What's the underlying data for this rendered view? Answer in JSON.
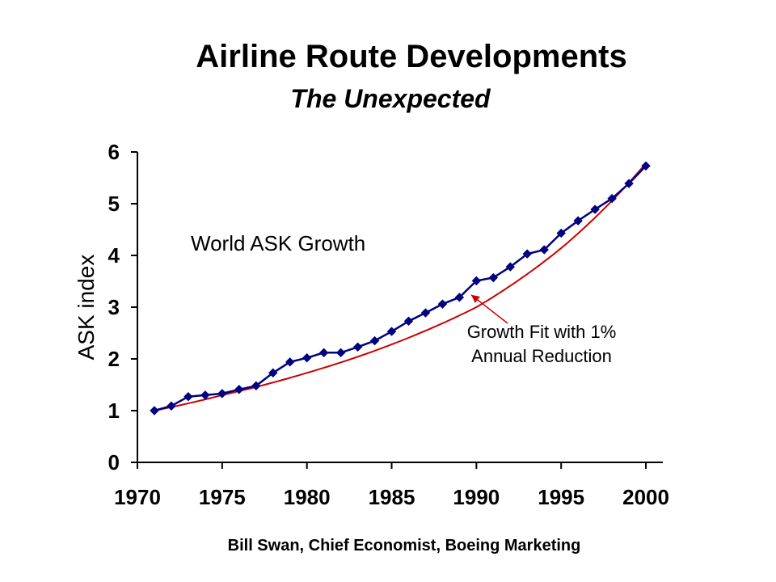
{
  "header": {
    "title": "Airline Route Developments",
    "subtitle": "The Unexpected"
  },
  "footer": {
    "credit": "Bill Swan, Chief Economist, Boeing Marketing"
  },
  "chart_data": {
    "type": "line",
    "title": "Airline Route Developments",
    "ylabel": "ASK index",
    "xlabel": "",
    "xlim": [
      1970,
      2001
    ],
    "ylim": [
      0,
      6
    ],
    "x_ticks": [
      1970,
      1975,
      1980,
      1985,
      1990,
      1995,
      2000
    ],
    "y_ticks": [
      0,
      1,
      2,
      3,
      4,
      5,
      6
    ],
    "grid": false,
    "series_label": "World ASK Growth",
    "series": [
      {
        "name": "World ASK Growth",
        "color": "#000080",
        "marker": "diamond",
        "x": [
          1971,
          1972,
          1973,
          1974,
          1975,
          1976,
          1977,
          1978,
          1979,
          1980,
          1981,
          1982,
          1983,
          1984,
          1985,
          1986,
          1987,
          1988,
          1989,
          1990,
          1991,
          1992,
          1993,
          1994,
          1995,
          1996,
          1997,
          1998,
          1999,
          2000
        ],
        "y": [
          1.0,
          1.09,
          1.27,
          1.3,
          1.33,
          1.41,
          1.48,
          1.73,
          1.94,
          2.02,
          2.12,
          2.12,
          2.23,
          2.35,
          2.53,
          2.73,
          2.89,
          3.06,
          3.19,
          3.51,
          3.57,
          3.78,
          4.03,
          4.11,
          4.43,
          4.67,
          4.89,
          5.1,
          5.39,
          5.73
        ]
      },
      {
        "name": "Growth Fit with 1% Annual Reduction",
        "color": "#cc0000",
        "marker": "none",
        "x": [
          1971,
          1975,
          1980,
          1985,
          1990,
          1995,
          2000
        ],
        "y": [
          1.0,
          1.3,
          1.73,
          2.28,
          3.0,
          4.14,
          5.78
        ]
      }
    ],
    "annotation": {
      "lines": [
        "Growth Fit with 1%",
        "Annual Reduction"
      ],
      "points_to": {
        "x": 1989.6,
        "y": 3.3
      }
    }
  }
}
